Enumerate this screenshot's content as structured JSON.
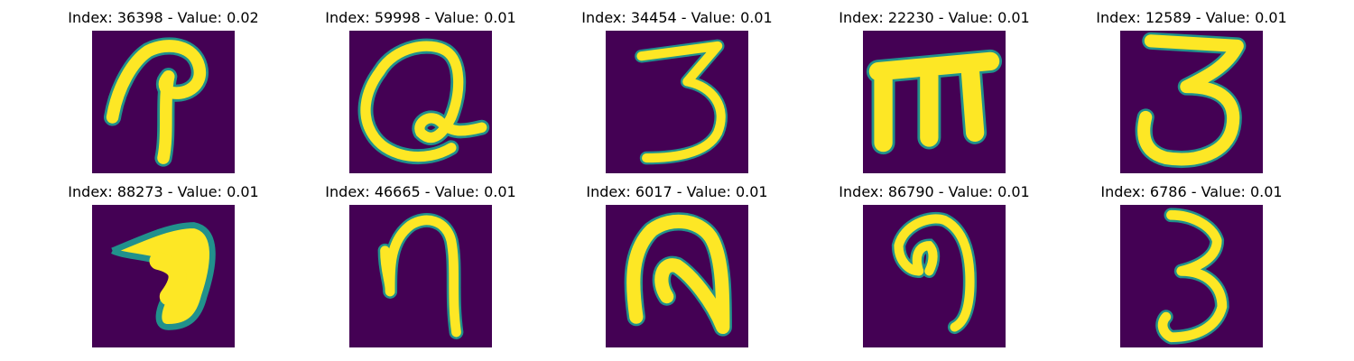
{
  "colors": {
    "background": "#440154",
    "stroke_mid": "#21918c",
    "stroke_high": "#fde725"
  },
  "panels": [
    {
      "title": "Index: 36398 - Value: 0.02",
      "index": 36398,
      "value": 0.02,
      "glyph": "p-loop"
    },
    {
      "title": "Index: 59998 - Value: 0.01",
      "index": 59998,
      "value": 0.01,
      "glyph": "a-loop"
    },
    {
      "title": "Index: 34454 - Value: 0.01",
      "index": 34454,
      "value": 0.01,
      "glyph": "three"
    },
    {
      "title": "Index: 22230 - Value: 0.01",
      "index": 22230,
      "value": 0.01,
      "glyph": "m"
    },
    {
      "title": "Index: 12589 - Value: 0.01",
      "index": 12589,
      "value": 0.01,
      "glyph": "three"
    },
    {
      "title": "Index: 88273 - Value: 0.01",
      "index": 88273,
      "value": 0.01,
      "glyph": "seven-blob"
    },
    {
      "title": "Index: 46665 - Value: 0.01",
      "index": 46665,
      "value": 0.01,
      "glyph": "n"
    },
    {
      "title": "Index: 6017 - Value: 0.01",
      "index": 6017,
      "value": 0.01,
      "glyph": "n-loop"
    },
    {
      "title": "Index: 86790 - Value: 0.01",
      "index": 86790,
      "value": 0.01,
      "glyph": "n-curl"
    },
    {
      "title": "Index: 6786 - Value: 0.01",
      "index": 6786,
      "value": 0.01,
      "glyph": "three"
    }
  ]
}
